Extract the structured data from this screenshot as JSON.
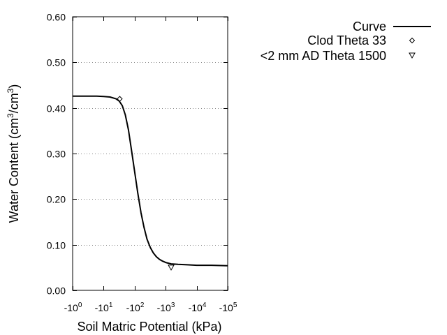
{
  "chart_data": {
    "type": "line",
    "title": "",
    "xlabel": "Soil Matric Potential (kPa)",
    "ylabel_parts": {
      "base": "Water Content (cm",
      "sup1": "3",
      "mid": "/cm",
      "sup2": "3",
      "end": ")"
    },
    "x_scale": "log",
    "xlim": [
      1,
      100000
    ],
    "ylim": [
      0,
      0.6
    ],
    "x_ticks": [
      {
        "base": "-10",
        "exp": "0",
        "value": 1
      },
      {
        "base": "-10",
        "exp": "1",
        "value": 10
      },
      {
        "base": "-10",
        "exp": "2",
        "value": 100
      },
      {
        "base": "-10",
        "exp": "3",
        "value": 1000
      },
      {
        "base": "-10",
        "exp": "4",
        "value": 10000
      },
      {
        "base": "-10",
        "exp": "5",
        "value": 100000
      }
    ],
    "y_ticks": [
      {
        "label": "0.00",
        "value": 0.0
      },
      {
        "label": "0.10",
        "value": 0.1
      },
      {
        "label": "0.20",
        "value": 0.2
      },
      {
        "label": "0.30",
        "value": 0.3
      },
      {
        "label": "0.40",
        "value": 0.4
      },
      {
        "label": "0.50",
        "value": 0.5
      },
      {
        "label": "0.60",
        "value": 0.6
      }
    ],
    "grid": "horizontal-dotted",
    "legend_position": "top-right-outside",
    "series": [
      {
        "name": "Curve",
        "kind": "line",
        "points": [
          [
            1,
            0.426
          ],
          [
            3,
            0.426
          ],
          [
            6,
            0.426
          ],
          [
            10,
            0.425
          ],
          [
            16,
            0.424
          ],
          [
            25,
            0.42
          ],
          [
            32,
            0.415
          ],
          [
            40,
            0.405
          ],
          [
            50,
            0.385
          ],
          [
            63,
            0.352
          ],
          [
            80,
            0.305
          ],
          [
            100,
            0.26
          ],
          [
            126,
            0.213
          ],
          [
            160,
            0.17
          ],
          [
            200,
            0.138
          ],
          [
            250,
            0.112
          ],
          [
            320,
            0.094
          ],
          [
            400,
            0.082
          ],
          [
            500,
            0.074
          ],
          [
            630,
            0.068
          ],
          [
            800,
            0.064
          ],
          [
            1000,
            0.061
          ],
          [
            1500,
            0.058
          ],
          [
            2500,
            0.057
          ],
          [
            5000,
            0.056
          ],
          [
            10000,
            0.055
          ],
          [
            30000,
            0.055
          ],
          [
            100000,
            0.054
          ]
        ]
      },
      {
        "name": "Clod Theta 33",
        "kind": "scatter",
        "marker": "diamond",
        "points": [
          [
            33,
            0.42
          ]
        ]
      },
      {
        "name": "<2 mm AD Theta 1500",
        "kind": "scatter",
        "marker": "triangle-down",
        "points": [
          [
            1500,
            0.05
          ]
        ]
      }
    ]
  }
}
